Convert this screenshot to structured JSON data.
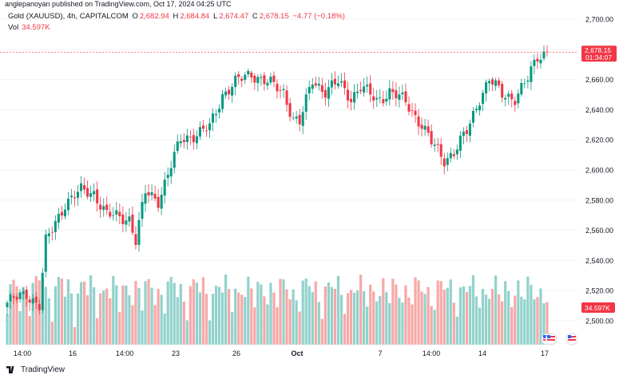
{
  "header": {
    "publisher": "anglepanoyan published on TradingView.com, Oct 17, 2024 04:25 UTC"
  },
  "legend": {
    "symbol": "Gold (XAUUSD), 4h, CAPITALCOM",
    "o_label": "O",
    "o_value": "2,682.94",
    "h_label": "H",
    "h_value": "2,684.84",
    "l_label": "L",
    "l_value": "2,674.47",
    "c_label": "C",
    "c_value": "2,678.15",
    "change": "−4.77 (−0.18%)",
    "vol_label": "Vol",
    "vol_value": "34.597K"
  },
  "footer": {
    "brand": "TradingView"
  },
  "colors": {
    "up": "#089981",
    "down": "#f23645",
    "up_vol": "#92d2cc",
    "down_vol": "#f7a9a7",
    "grid": "#f0f3fa",
    "axis_text": "#131722"
  },
  "chart_data": {
    "type": "candlestick",
    "title": "Gold (XAUUSD), 4h, CAPITALCOM",
    "y_range": [
      2480,
      2710
    ],
    "y_ticks": [
      "2,700.00",
      "2,680.00",
      "2,660.00",
      "2,640.00",
      "2,620.00",
      "2,600.00",
      "2,580.00",
      "2,560.00",
      "2,540.00",
      "2,520.00",
      "2,500.00"
    ],
    "x_ticks": [
      "14:00",
      "16",
      "14:00",
      "23",
      "26",
      "Oct",
      "7",
      "14:00",
      "14",
      "17"
    ],
    "last_price": "2,678.15",
    "countdown": "01:34:07",
    "last_volume": "34.597K",
    "anchors": [
      [
        0,
        2512
      ],
      [
        6,
        2518
      ],
      [
        10,
        2510
      ],
      [
        12,
        2552
      ],
      [
        18,
        2578
      ],
      [
        23,
        2586
      ],
      [
        27,
        2585
      ],
      [
        31,
        2570
      ],
      [
        38,
        2568
      ],
      [
        40,
        2553
      ],
      [
        43,
        2585
      ],
      [
        47,
        2580
      ],
      [
        54,
        2620
      ],
      [
        60,
        2625
      ],
      [
        63,
        2628
      ],
      [
        67,
        2650
      ],
      [
        71,
        2658
      ],
      [
        76,
        2664
      ],
      [
        81,
        2658
      ],
      [
        86,
        2652
      ],
      [
        89,
        2634
      ],
      [
        91,
        2631
      ],
      [
        95,
        2660
      ],
      [
        99,
        2652
      ],
      [
        103,
        2658
      ],
      [
        107,
        2648
      ],
      [
        110,
        2655
      ],
      [
        115,
        2646
      ],
      [
        119,
        2652
      ],
      [
        124,
        2645
      ],
      [
        129,
        2630
      ],
      [
        132,
        2618
      ],
      [
        136,
        2607
      ],
      [
        139,
        2612
      ],
      [
        143,
        2625
      ],
      [
        147,
        2648
      ],
      [
        150,
        2660
      ],
      [
        154,
        2650
      ],
      [
        158,
        2648
      ],
      [
        162,
        2660
      ],
      [
        165,
        2675
      ],
      [
        168,
        2679
      ]
    ],
    "candle_count": 169
  }
}
